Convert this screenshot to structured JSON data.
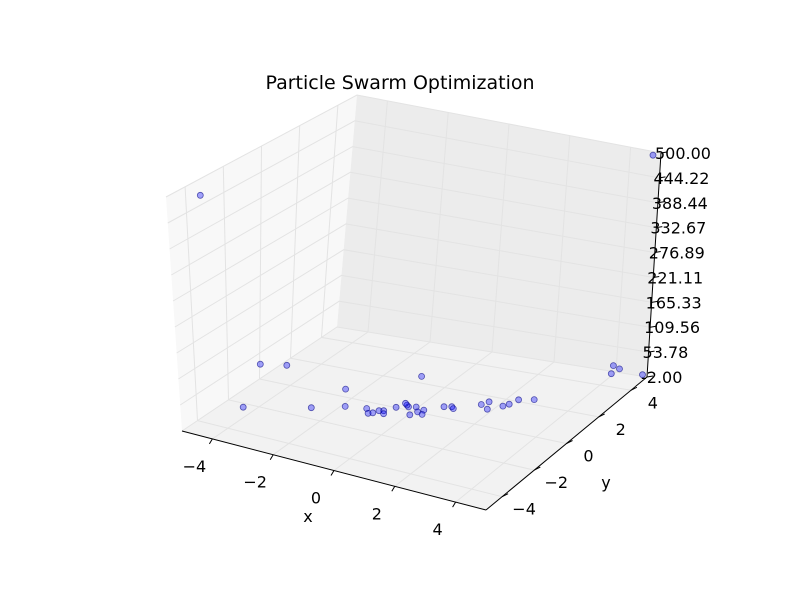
{
  "chart_data": {
    "type": "scatter",
    "projection": "3d",
    "title": "Particle Swarm Optimization",
    "xlabel": "x",
    "ylabel": "y",
    "zlabel": "",
    "xlim": [
      -5,
      5
    ],
    "ylim": [
      -5,
      5
    ],
    "zlim": [
      -2.0,
      500.0
    ],
    "x_ticks": [
      "−4",
      "−2",
      "0",
      "2",
      "4"
    ],
    "y_ticks": [
      "−4",
      "−2",
      "0",
      "2",
      "4"
    ],
    "z_ticks": [
      "-2.00",
      "53.78",
      "109.56",
      "165.33",
      "221.11",
      "276.89",
      "332.67",
      "388.44",
      "444.22",
      "500.00"
    ],
    "grid": true,
    "marker_color": "#0000ff",
    "marker_alpha": 0.35,
    "series": [
      {
        "points": [
          [
            -4.9,
            -3.4,
            470
          ],
          [
            4.8,
            4.9,
            495
          ],
          [
            -4.2,
            -1.5,
            75
          ],
          [
            -3.6,
            -1.0,
            70
          ],
          [
            -4.0,
            -3.0,
            20
          ],
          [
            -2.2,
            0.0,
            15
          ],
          [
            0.0,
            0.5,
            60
          ],
          [
            -2.6,
            -1.4,
            3
          ],
          [
            -1.8,
            -0.8,
            3
          ],
          [
            -0.8,
            -0.6,
            3
          ],
          [
            -1.2,
            -0.6,
            2
          ],
          [
            -0.5,
            -0.1,
            2
          ],
          [
            -0.2,
            0.1,
            2
          ],
          [
            -0.7,
            -0.5,
            2
          ],
          [
            -0.3,
            0.2,
            2
          ],
          [
            0.0,
            0.2,
            2
          ],
          [
            -1.0,
            -0.9,
            2
          ],
          [
            -0.9,
            -0.8,
            2
          ],
          [
            -0.6,
            -0.7,
            2
          ],
          [
            0.1,
            -0.4,
            2
          ],
          [
            0.3,
            0.1,
            2
          ],
          [
            0.7,
            0.6,
            2
          ],
          [
            0.9,
            0.7,
            2
          ],
          [
            1.0,
            0.6,
            2
          ],
          [
            1.6,
            1.2,
            3
          ],
          [
            1.7,
            1.5,
            2
          ],
          [
            1.9,
            1.0,
            2
          ],
          [
            2.3,
            1.6,
            2
          ],
          [
            2.4,
            2.0,
            2
          ],
          [
            2.8,
            2.2,
            2
          ],
          [
            2.2,
            1.4,
            2
          ],
          [
            0.2,
            -0.1,
            2
          ],
          [
            0.4,
            -0.2,
            2
          ],
          [
            -0.4,
            0.3,
            2
          ],
          [
            4.0,
            4.7,
            3
          ],
          [
            4.1,
            4.6,
            25
          ],
          [
            4.3,
            4.6,
            20
          ],
          [
            4.9,
            4.9,
            5
          ]
        ]
      }
    ]
  }
}
